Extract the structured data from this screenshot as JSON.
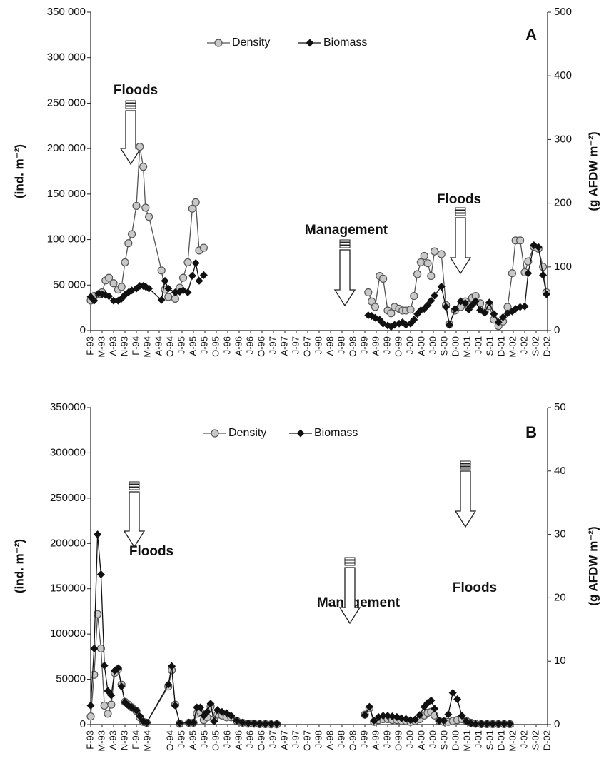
{
  "chart_data": [
    {
      "type": "line",
      "panel_label": "A",
      "annotations": [
        "Floods",
        "Management",
        "Floods"
      ],
      "y_label": "(ind. m⁻²)",
      "y2_label": "(g AFDW m⁻²)",
      "xlim": [
        0,
        40
      ],
      "xticks": [
        {
          "value": 0,
          "label": "F-93"
        },
        {
          "value": 1,
          "label": "M-93"
        },
        {
          "value": 2,
          "label": "A-93"
        },
        {
          "value": 3,
          "label": "N-93"
        },
        {
          "value": 4,
          "label": "F-94"
        },
        {
          "value": 5,
          "label": "M-94"
        },
        {
          "value": 6,
          "label": "A-94"
        },
        {
          "value": 7,
          "label": "O-94"
        },
        {
          "value": 8,
          "label": "J-95"
        },
        {
          "value": 9,
          "label": "A-95"
        },
        {
          "value": 10,
          "label": "J-95"
        },
        {
          "value": 11,
          "label": "O-95"
        },
        {
          "value": 12,
          "label": "J-96"
        },
        {
          "value": 13,
          "label": "A-96"
        },
        {
          "value": 14,
          "label": "J-96"
        },
        {
          "value": 15,
          "label": "O-96"
        },
        {
          "value": 16,
          "label": "J-97"
        },
        {
          "value": 17,
          "label": "A-97"
        },
        {
          "value": 18,
          "label": "J-97"
        },
        {
          "value": 19,
          "label": "O-97"
        },
        {
          "value": 20,
          "label": "J-98"
        },
        {
          "value": 21,
          "label": "A-98"
        },
        {
          "value": 22,
          "label": "J-98"
        },
        {
          "value": 23,
          "label": "O-98"
        },
        {
          "value": 24,
          "label": "J-99"
        },
        {
          "value": 25,
          "label": "A-99"
        },
        {
          "value": 26,
          "label": "J-99"
        },
        {
          "value": 27,
          "label": "O-99"
        },
        {
          "value": 28,
          "label": "J-00"
        },
        {
          "value": 29,
          "label": "A-00"
        },
        {
          "value": 30,
          "label": "J-00"
        },
        {
          "value": 31,
          "label": "S-00"
        },
        {
          "value": 32,
          "label": "D-00"
        },
        {
          "value": 33,
          "label": "M-01"
        },
        {
          "value": 34,
          "label": "J-01"
        },
        {
          "value": 35,
          "label": "S-01"
        },
        {
          "value": 36,
          "label": "D-01"
        },
        {
          "value": 37,
          "label": "M-02"
        },
        {
          "value": 38,
          "label": "J-02"
        },
        {
          "value": 39,
          "label": "S-02"
        },
        {
          "value": 40,
          "label": "D-02"
        }
      ],
      "ylim": [
        0,
        350000
      ],
      "yticks": [
        0,
        {
          "value": 50000,
          "label": "50 000"
        },
        {
          "value": 100000,
          "label": "100 000"
        },
        {
          "value": 150000,
          "label": "150 000"
        },
        {
          "value": 200000,
          "label": "200 000"
        },
        {
          "value": 250000,
          "label": "250 000"
        },
        {
          "value": 300000,
          "label": "300 000"
        },
        {
          "value": 350000,
          "label": "350 000"
        }
      ],
      "y2lim": [
        0,
        500
      ],
      "y2ticks": [
        0,
        100,
        200,
        300,
        400,
        500
      ],
      "x": [
        0,
        0.3,
        0.7,
        1,
        1.3,
        1.6,
        2,
        2.4,
        2.7,
        3,
        3.3,
        3.6,
        4,
        4.3,
        4.6,
        4.8,
        5.1,
        6.2,
        6.5,
        6.8,
        7.4,
        7.8,
        8.1,
        8.5,
        8.9,
        9.2,
        9.5,
        9.9,
        null,
        24.3,
        24.6,
        24.9,
        25.3,
        25.6,
        26,
        26.3,
        26.6,
        27,
        27.3,
        27.6,
        28,
        28.3,
        28.6,
        28.9,
        29.2,
        29.5,
        29.8,
        30.1,
        30.7,
        31.1,
        31.4,
        31.9,
        32.4,
        32.8,
        33.1,
        33.4,
        33.7,
        34.1,
        34.5,
        34.9,
        35.3,
        35.7,
        36.1,
        36.5,
        36.9,
        37.2,
        37.6,
        38,
        38.3,
        38.8,
        39.2,
        39.6,
        39.9
      ],
      "series": [
        {
          "name": "Density",
          "color": "#555555",
          "marker": "circle",
          "axis": "y",
          "values": [
            33000,
            38000,
            40000,
            42000,
            55000,
            58000,
            52000,
            45000,
            48000,
            75000,
            96000,
            106000,
            137000,
            202000,
            180000,
            135000,
            125000,
            66000,
            45000,
            37000,
            35000,
            47000,
            58000,
            75000,
            134000,
            141000,
            88000,
            91000,
            null,
            42000,
            32000,
            26000,
            60000,
            57000,
            22000,
            19000,
            26000,
            24000,
            22000,
            22000,
            23000,
            38000,
            62000,
            75000,
            82000,
            74000,
            60000,
            87000,
            84000,
            28000,
            7000,
            22000,
            26000,
            32000,
            28000,
            36000,
            38000,
            30000,
            21000,
            27000,
            12000,
            5000,
            10000,
            26000,
            63000,
            99000,
            99000,
            64000,
            76000,
            92000,
            90000,
            70000,
            42000
          ]
        },
        {
          "name": "Biomass",
          "color": "#111111",
          "marker": "diamond",
          "axis": "y2",
          "values": [
            53,
            47,
            58,
            57,
            56,
            54,
            47,
            47,
            50,
            56,
            60,
            63,
            66,
            70,
            70,
            69,
            66,
            48,
            78,
            66,
            60,
            61,
            63,
            60,
            86,
            106,
            78,
            87,
            null,
            24,
            23,
            20,
            17,
            11,
            8,
            6,
            9,
            11,
            13,
            9,
            11,
            17,
            26,
            32,
            34,
            40,
            47,
            55,
            69,
            37,
            9,
            34,
            46,
            43,
            33,
            40,
            46,
            32,
            28,
            44,
            26,
            13,
            21,
            27,
            30,
            34,
            37,
            38,
            90,
            134,
            131,
            87,
            57
          ]
        }
      ]
    },
    {
      "type": "line",
      "panel_label": "B",
      "annotations": [
        "Floods",
        "Management",
        "Floods"
      ],
      "y_label": "(ind. m⁻²)",
      "y2_label": "(g AFDW m⁻²)",
      "xlim": [
        0,
        40
      ],
      "xticks": [
        {
          "value": 0,
          "label": "F-93"
        },
        {
          "value": 1,
          "label": "M-93"
        },
        {
          "value": 2,
          "label": "A-93"
        },
        {
          "value": 3,
          "label": "N-93"
        },
        {
          "value": 4,
          "label": "F-94"
        },
        {
          "value": 5,
          "label": "M-94"
        },
        {
          "value": 7,
          "label": "O-94"
        },
        {
          "value": 8,
          "label": "J-95"
        },
        {
          "value": 9,
          "label": "A-95"
        },
        {
          "value": 10,
          "label": "J-95"
        },
        {
          "value": 11,
          "label": "O-95"
        },
        {
          "value": 12,
          "label": "J-96"
        },
        {
          "value": 13,
          "label": "A-96"
        },
        {
          "value": 14,
          "label": "J-96"
        },
        {
          "value": 15,
          "label": "O-96"
        },
        {
          "value": 16,
          "label": "J-97"
        },
        {
          "value": 17,
          "label": "A-97"
        },
        {
          "value": 18,
          "label": "J-97"
        },
        {
          "value": 19,
          "label": "O-97"
        },
        {
          "value": 20,
          "label": "J-98"
        },
        {
          "value": 21,
          "label": "A-98"
        },
        {
          "value": 22,
          "label": "J-98"
        },
        {
          "value": 23,
          "label": "O-98"
        },
        {
          "value": 24,
          "label": "J-99"
        },
        {
          "value": 25,
          "label": "A-99"
        },
        {
          "value": 26,
          "label": "J-99"
        },
        {
          "value": 27,
          "label": "O-99"
        },
        {
          "value": 28,
          "label": "J-00"
        },
        {
          "value": 29,
          "label": "A-00"
        },
        {
          "value": 30,
          "label": "J-00"
        },
        {
          "value": 31,
          "label": "S-00"
        },
        {
          "value": 32,
          "label": "D-00"
        },
        {
          "value": 33,
          "label": "M-01"
        },
        {
          "value": 34,
          "label": "J-01"
        },
        {
          "value": 35,
          "label": "S-01"
        },
        {
          "value": 36,
          "label": "D-01"
        },
        {
          "value": 37,
          "label": "M-02"
        },
        {
          "value": 38,
          "label": "J-02"
        },
        {
          "value": 39,
          "label": "S-02"
        },
        {
          "value": 40,
          "label": "D-02"
        }
      ],
      "ylim": [
        0,
        350000
      ],
      "yticks": [
        0,
        50000,
        100000,
        150000,
        200000,
        250000,
        300000,
        350000
      ],
      "y2lim": [
        0,
        50
      ],
      "y2ticks": [
        0,
        10,
        20,
        30,
        40,
        50
      ],
      "x": [
        0,
        0.3,
        0.6,
        0.9,
        1.2,
        1.5,
        1.8,
        2.1,
        2.4,
        2.7,
        3,
        3.3,
        3.6,
        4,
        4.3,
        4.6,
        4.9,
        6.8,
        7.1,
        7.4,
        7.8,
        8.6,
        9,
        9.3,
        9.6,
        9.9,
        10.2,
        10.5,
        10.8,
        11.1,
        11.5,
        11.9,
        12.3,
        12.8,
        13.3,
        13.8,
        14.3,
        14.8,
        15.3,
        15.8,
        16.3,
        null,
        24,
        24.4,
        24.8,
        25.2,
        25.6,
        26,
        26.4,
        26.8,
        27.2,
        27.6,
        28,
        28.4,
        28.8,
        29.2,
        29.5,
        29.8,
        30.1,
        30.5,
        30.9,
        31.3,
        31.7,
        32.1,
        32.5,
        32.9,
        33.3,
        33.7,
        34.2,
        34.7,
        35.2,
        35.7,
        36.2,
        36.7
      ],
      "series": [
        {
          "name": "Density",
          "color": "#555555",
          "marker": "circle",
          "axis": "y",
          "values": [
            9000,
            55000,
            122000,
            84000,
            21000,
            12000,
            22000,
            57000,
            61000,
            44000,
            25000,
            22000,
            19000,
            15000,
            8000,
            3000,
            2000,
            42000,
            60000,
            22000,
            1000,
            2000,
            2000,
            12000,
            14000,
            5000,
            8000,
            20000,
            6000,
            11000,
            10000,
            8000,
            8000,
            4000,
            2000,
            1000,
            1000,
            500,
            500,
            300,
            300,
            null,
            11000,
            18000,
            3000,
            5000,
            6000,
            6000,
            5000,
            5000,
            4000,
            4000,
            3000,
            4000,
            6000,
            10000,
            13000,
            14000,
            10000,
            4000,
            3000,
            3000,
            4000,
            5000,
            6000,
            4000,
            2000,
            1000,
            500,
            500,
            500,
            500,
            500,
            500
          ]
        },
        {
          "name": "Biomass",
          "color": "#111111",
          "marker": "diamond",
          "axis": "y2",
          "values": [
            3,
            12,
            30,
            23.7,
            9.3,
            5.3,
            4.6,
            8.5,
            8.9,
            6,
            3.5,
            3,
            2.7,
            2.2,
            1.3,
            0.5,
            0.3,
            6.3,
            9.2,
            3,
            0.2,
            0.3,
            0.3,
            2.7,
            2.7,
            1.4,
            2,
            3.3,
            0.5,
            2.3,
            2,
            1.8,
            1.4,
            0.6,
            0.3,
            0.2,
            0.2,
            0.1,
            0.1,
            0.1,
            0.1,
            null,
            1.5,
            2.8,
            0.6,
            1.2,
            1.4,
            1.4,
            1.3,
            1.2,
            1,
            0.9,
            0.7,
            0.8,
            1.5,
            2.8,
            3.4,
            3.8,
            2.5,
            0.6,
            0.6,
            1.6,
            5,
            4,
            1.4,
            0.5,
            0.2,
            0.1,
            0.1,
            0.1,
            0.1,
            0.1,
            0.1,
            0.1
          ]
        }
      ]
    }
  ]
}
